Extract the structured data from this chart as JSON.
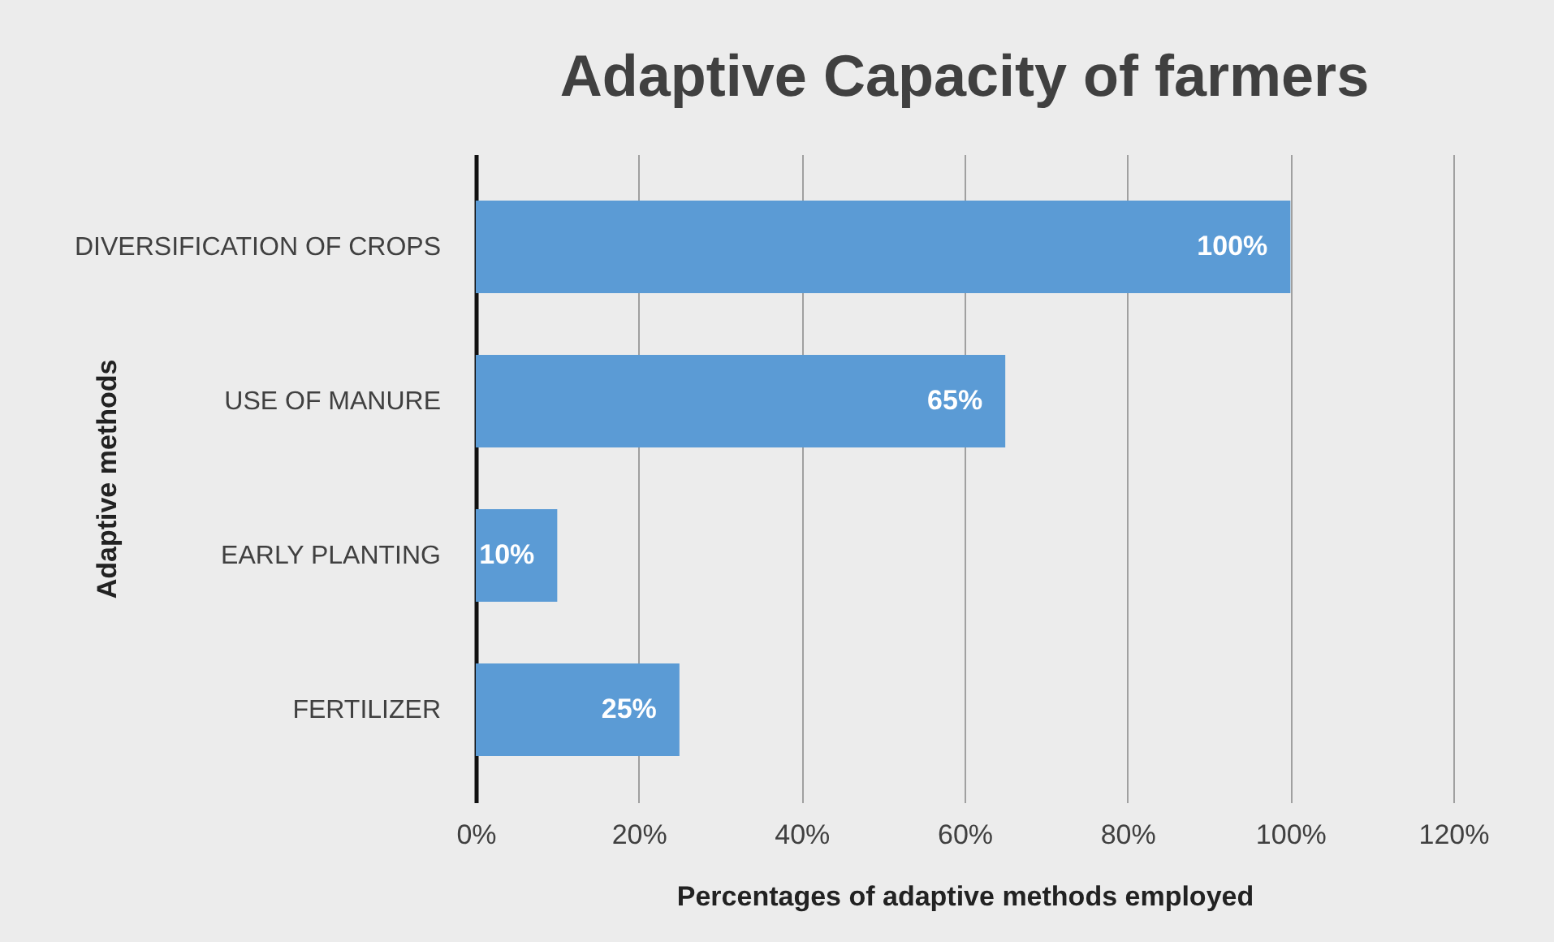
{
  "chart_data": {
    "type": "bar",
    "orientation": "horizontal",
    "title": "Adaptive Capacity of farmers",
    "xlabel": "Percentages of adaptive methods employed",
    "ylabel": "Adaptive methods",
    "categories": [
      "DIVERSIFICATION OF CROPS",
      "USE OF MANURE",
      "EARLY PLANTING",
      "FERTILIZER"
    ],
    "values": [
      100,
      65,
      10,
      25
    ],
    "color": "#5b9bd5",
    "value_labels": [
      "100%",
      "65%",
      "10%",
      "25%"
    ],
    "xlim": [
      0,
      120
    ],
    "xticks": [
      {
        "value": 0,
        "label": "0%"
      },
      {
        "value": 20,
        "label": "20%"
      },
      {
        "value": 40,
        "label": "40%"
      },
      {
        "value": 60,
        "label": "60%"
      },
      {
        "value": 80,
        "label": "80%"
      },
      {
        "value": 100,
        "label": "100%"
      },
      {
        "value": 120,
        "label": "120%"
      }
    ],
    "grid": "x"
  }
}
